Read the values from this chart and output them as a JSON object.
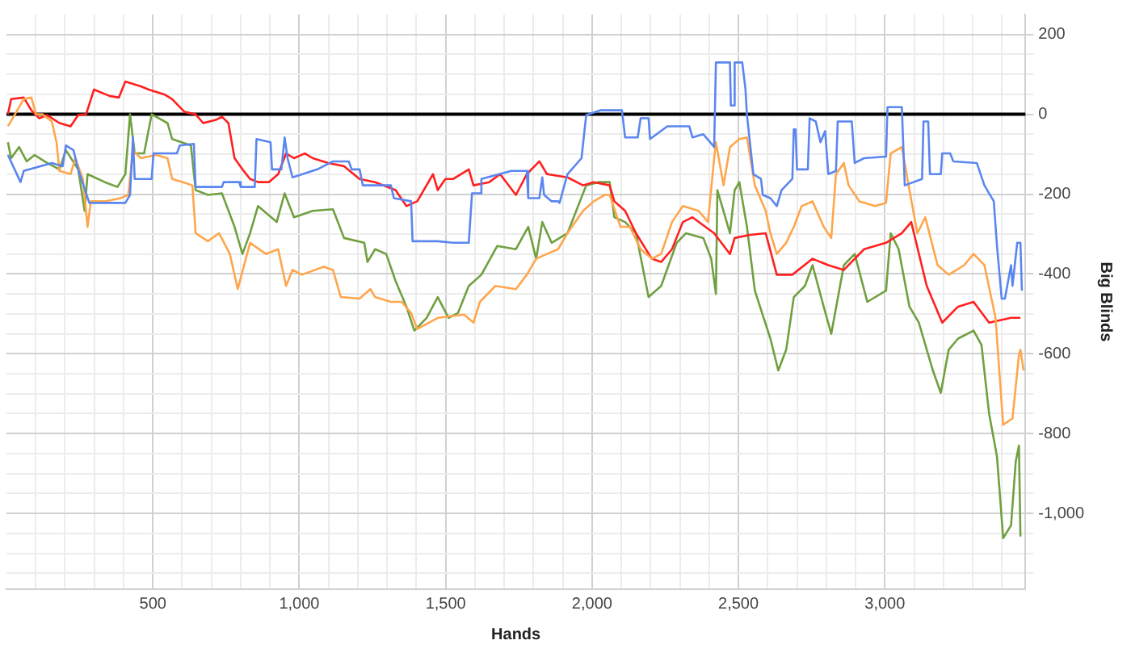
{
  "chart_data": {
    "type": "line",
    "xlabel": "Hands",
    "ylabel": "Big Blinds",
    "xlim": [
      0,
      3480
    ],
    "ylim": [
      -1190,
      250
    ],
    "xticks": [
      {
        "value": 100,
        "label": null
      },
      {
        "value": 200,
        "label": null
      },
      {
        "value": 300,
        "label": null
      },
      {
        "value": 400,
        "label": null
      },
      {
        "value": 500,
        "label": "500"
      },
      {
        "value": 600,
        "label": null
      },
      {
        "value": 700,
        "label": null
      },
      {
        "value": 800,
        "label": null
      },
      {
        "value": 900,
        "label": null
      },
      {
        "value": 1000,
        "label": "1,000"
      },
      {
        "value": 1100,
        "label": null
      },
      {
        "value": 1200,
        "label": null
      },
      {
        "value": 1300,
        "label": null
      },
      {
        "value": 1400,
        "label": null
      },
      {
        "value": 1500,
        "label": "1,500"
      },
      {
        "value": 1600,
        "label": null
      },
      {
        "value": 1700,
        "label": null
      },
      {
        "value": 1800,
        "label": null
      },
      {
        "value": 1900,
        "label": null
      },
      {
        "value": 2000,
        "label": "2,000"
      },
      {
        "value": 2100,
        "label": null
      },
      {
        "value": 2200,
        "label": null
      },
      {
        "value": 2300,
        "label": null
      },
      {
        "value": 2400,
        "label": null
      },
      {
        "value": 2500,
        "label": "2,500"
      },
      {
        "value": 2600,
        "label": null
      },
      {
        "value": 2700,
        "label": null
      },
      {
        "value": 2800,
        "label": null
      },
      {
        "value": 2900,
        "label": null
      },
      {
        "value": 3000,
        "label": "3,000"
      },
      {
        "value": 3100,
        "label": null
      },
      {
        "value": 3200,
        "label": null
      },
      {
        "value": 3300,
        "label": null
      },
      {
        "value": 3400,
        "label": null
      }
    ],
    "yticks": [
      {
        "value": -1150,
        "label": null
      },
      {
        "value": -1100,
        "label": null
      },
      {
        "value": -1050,
        "label": null
      },
      {
        "value": -1000,
        "label": "-1,000"
      },
      {
        "value": -950,
        "label": null
      },
      {
        "value": -900,
        "label": null
      },
      {
        "value": -850,
        "label": null
      },
      {
        "value": -800,
        "label": "-800"
      },
      {
        "value": -750,
        "label": null
      },
      {
        "value": -700,
        "label": null
      },
      {
        "value": -650,
        "label": null
      },
      {
        "value": -600,
        "label": "-600"
      },
      {
        "value": -550,
        "label": null
      },
      {
        "value": -500,
        "label": null
      },
      {
        "value": -450,
        "label": null
      },
      {
        "value": -400,
        "label": "-400"
      },
      {
        "value": -350,
        "label": null
      },
      {
        "value": -300,
        "label": null
      },
      {
        "value": -250,
        "label": null
      },
      {
        "value": -200,
        "label": "-200"
      },
      {
        "value": -150,
        "label": null
      },
      {
        "value": -100,
        "label": null
      },
      {
        "value": -50,
        "label": null
      },
      {
        "value": 0,
        "label": "0"
      },
      {
        "value": 50,
        "label": null
      },
      {
        "value": 100,
        "label": null
      },
      {
        "value": 150,
        "label": null
      },
      {
        "value": 200,
        "label": "200"
      }
    ],
    "grid": true,
    "legend": false,
    "marker": "none",
    "line_style": "solid",
    "ref_lines": [
      {
        "axis": "y",
        "value": 0,
        "color": "#000000"
      }
    ],
    "series": [
      {
        "color": "#5b86f0",
        "x": [
          5,
          48,
          59,
          155,
          192,
          203,
          229,
          245,
          283,
          406,
          422,
          432,
          438,
          496,
          502,
          582,
          592,
          640,
          646,
          736,
          742,
          795,
          800,
          848,
          854,
          902,
          907,
          939,
          950,
          960,
          977,
          1062,
          1115,
          1169,
          1179,
          1206,
          1217,
          1233,
          1313,
          1323,
          1382,
          1387,
          1473,
          1526,
          1579,
          1590,
          1617,
          1622,
          1724,
          1777,
          1782,
          1820,
          1830,
          1836,
          1862,
          1884,
          1889,
          1916,
          1964,
          1974,
          1980,
          2028,
          2060,
          2102,
          2113,
          2156,
          2166,
          2193,
          2198,
          2257,
          2332,
          2343,
          2380,
          2417,
          2423,
          2471,
          2474,
          2484,
          2487,
          2513,
          2524,
          2529,
          2551,
          2577,
          2583,
          2609,
          2631,
          2647,
          2684,
          2689,
          2695,
          2700,
          2737,
          2743,
          2764,
          2780,
          2796,
          2807,
          2833,
          2839,
          2887,
          2897,
          2929,
          3004,
          3009,
          3058,
          3068,
          3127,
          3132,
          3148,
          3154,
          3191,
          3196,
          3223,
          3234,
          3314,
          3340,
          3372,
          3383,
          3399,
          3410,
          3431,
          3436,
          3452,
          3463,
          3468
        ],
        "values": [
          -102,
          -170,
          -142,
          -122,
          -130,
          -78,
          -90,
          -138,
          -222,
          -222,
          -202,
          -58,
          -162,
          -162,
          -98,
          -98,
          -78,
          -74,
          -182,
          -182,
          -170,
          -170,
          -182,
          -182,
          -62,
          -70,
          -138,
          -138,
          -58,
          -110,
          -158,
          -138,
          -118,
          -118,
          -138,
          -138,
          -178,
          -178,
          -178,
          -210,
          -218,
          -318,
          -318,
          -322,
          -322,
          -198,
          -198,
          -162,
          -142,
          -142,
          -210,
          -210,
          -158,
          -202,
          -218,
          -218,
          -222,
          -150,
          -110,
          -42,
          -2,
          10,
          10,
          10,
          -58,
          -58,
          -10,
          -10,
          -62,
          -30,
          -30,
          -58,
          -50,
          -82,
          130,
          130,
          22,
          22,
          130,
          130,
          62,
          -2,
          -150,
          -162,
          -202,
          -210,
          -230,
          -190,
          -162,
          -38,
          -38,
          -138,
          -138,
          -10,
          -18,
          -70,
          -42,
          -150,
          -142,
          -18,
          -18,
          -122,
          -110,
          -106,
          18,
          18,
          -178,
          -162,
          -18,
          -18,
          -150,
          -150,
          -98,
          -98,
          -118,
          -122,
          -178,
          -218,
          -330,
          -462,
          -462,
          -378,
          -430,
          -322,
          -322,
          -442
        ]
      },
      {
        "color": "#ffa64d",
        "x": [
          5,
          21,
          59,
          85,
          101,
          123,
          155,
          171,
          181,
          219,
          235,
          261,
          277,
          288,
          336,
          390,
          416,
          432,
          459,
          512,
          550,
          566,
          603,
          635,
          646,
          688,
          726,
          763,
          790,
          832,
          886,
          928,
          955,
          977,
          1009,
          1083,
          1115,
          1142,
          1206,
          1243,
          1259,
          1313,
          1350,
          1382,
          1403,
          1473,
          1563,
          1595,
          1617,
          1670,
          1740,
          1777,
          1809,
          1846,
          1884,
          1916,
          1969,
          2006,
          2044,
          2060,
          2097,
          2129,
          2166,
          2204,
          2236,
          2273,
          2310,
          2364,
          2396,
          2417,
          2423,
          2449,
          2471,
          2503,
          2529,
          2556,
          2593,
          2609,
          2631,
          2663,
          2689,
          2716,
          2753,
          2791,
          2817,
          2833,
          2860,
          2876,
          2913,
          2967,
          3004,
          3020,
          3058,
          3084,
          3111,
          3138,
          3180,
          3218,
          3271,
          3303,
          3340,
          3378,
          3404,
          3436,
          3458,
          3463,
          3474
        ],
        "values": [
          -30,
          -10,
          38,
          42,
          0,
          0,
          -18,
          -70,
          -142,
          -150,
          -110,
          -162,
          -282,
          -218,
          -218,
          -210,
          -202,
          -90,
          -110,
          -102,
          -110,
          -162,
          -170,
          -178,
          -298,
          -318,
          -298,
          -350,
          -438,
          -322,
          -350,
          -338,
          -430,
          -390,
          -402,
          -382,
          -390,
          -458,
          -462,
          -438,
          -458,
          -470,
          -470,
          -498,
          -538,
          -510,
          -502,
          -522,
          -470,
          -430,
          -438,
          -402,
          -362,
          -350,
          -338,
          -298,
          -242,
          -218,
          -202,
          -202,
          -282,
          -282,
          -338,
          -362,
          -350,
          -270,
          -230,
          -242,
          -270,
          -110,
          -70,
          -178,
          -82,
          -62,
          -58,
          -178,
          -242,
          -298,
          -350,
          -322,
          -282,
          -230,
          -218,
          -282,
          -310,
          -150,
          -122,
          -178,
          -218,
          -230,
          -222,
          -98,
          -82,
          -190,
          -298,
          -258,
          -378,
          -402,
          -378,
          -350,
          -378,
          -510,
          -778,
          -762,
          -602,
          -590,
          -642
        ]
      },
      {
        "color": "#ff2020",
        "x": [
          5,
          16,
          59,
          85,
          112,
          139,
          181,
          219,
          245,
          272,
          299,
          352,
          384,
          406,
          459,
          486,
          539,
          566,
          608,
          646,
          672,
          715,
          736,
          758,
          779,
          806,
          832,
          859,
          896,
          928,
          955,
          982,
          1019,
          1046,
          1099,
          1153,
          1206,
          1259,
          1329,
          1366,
          1403,
          1457,
          1473,
          1499,
          1526,
          1579,
          1595,
          1649,
          1686,
          1740,
          1777,
          1820,
          1846,
          1916,
          1969,
          2006,
          2060,
          2076,
          2113,
          2150,
          2204,
          2236,
          2273,
          2310,
          2343,
          2417,
          2471,
          2487,
          2540,
          2593,
          2631,
          2684,
          2753,
          2807,
          2860,
          2929,
          3004,
          3058,
          3090,
          3143,
          3196,
          3250,
          3303,
          3356,
          3431,
          3463
        ],
        "values": [
          0,
          38,
          42,
          10,
          -10,
          -2,
          -22,
          -30,
          -2,
          0,
          62,
          46,
          42,
          82,
          70,
          62,
          50,
          38,
          6,
          0,
          -22,
          -14,
          -6,
          -22,
          -110,
          -138,
          -162,
          -170,
          -170,
          -150,
          -98,
          -110,
          -98,
          -110,
          -122,
          -130,
          -162,
          -170,
          -190,
          -230,
          -218,
          -150,
          -190,
          -162,
          -162,
          -138,
          -178,
          -170,
          -150,
          -202,
          -150,
          -118,
          -150,
          -158,
          -178,
          -170,
          -178,
          -218,
          -242,
          -298,
          -362,
          -370,
          -338,
          -270,
          -258,
          -298,
          -350,
          -310,
          -302,
          -298,
          -402,
          -402,
          -362,
          -378,
          -390,
          -338,
          -322,
          -298,
          -270,
          -430,
          -522,
          -482,
          -470,
          -522,
          -510,
          -510
        ]
      },
      {
        "color": "#70a040",
        "x": [
          5,
          16,
          43,
          69,
          96,
          139,
          181,
          203,
          245,
          267,
          277,
          336,
          379,
          406,
          422,
          438,
          470,
          496,
          550,
          566,
          630,
          646,
          688,
          736,
          779,
          806,
          832,
          859,
          923,
          950,
          982,
          1046,
          1115,
          1153,
          1222,
          1233,
          1259,
          1297,
          1329,
          1366,
          1393,
          1435,
          1473,
          1510,
          1542,
          1579,
          1622,
          1676,
          1740,
          1782,
          1809,
          1830,
          1862,
          1916,
          1980,
          2022,
          2060,
          2076,
          2113,
          2150,
          2193,
          2236,
          2289,
          2321,
          2380,
          2407,
          2423,
          2428,
          2471,
          2487,
          2503,
          2529,
          2556,
          2609,
          2636,
          2663,
          2689,
          2727,
          2753,
          2791,
          2817,
          2860,
          2897,
          2940,
          3004,
          3020,
          3047,
          3084,
          3116,
          3164,
          3191,
          3218,
          3250,
          3303,
          3330,
          3356,
          3383,
          3404,
          3431,
          3447,
          3458,
          3463
        ],
        "values": [
          -70,
          -110,
          -82,
          -118,
          -102,
          -122,
          -138,
          -90,
          -138,
          -242,
          -150,
          -170,
          -182,
          -150,
          0,
          -98,
          -98,
          0,
          -22,
          -62,
          -78,
          -190,
          -202,
          -198,
          -282,
          -350,
          -298,
          -230,
          -270,
          -198,
          -258,
          -242,
          -238,
          -310,
          -322,
          -370,
          -338,
          -350,
          -418,
          -482,
          -542,
          -510,
          -458,
          -510,
          -498,
          -430,
          -402,
          -330,
          -338,
          -282,
          -362,
          -270,
          -322,
          -298,
          -178,
          -170,
          -170,
          -258,
          -270,
          -298,
          -458,
          -430,
          -322,
          -298,
          -310,
          -362,
          -450,
          -190,
          -298,
          -190,
          -170,
          -282,
          -442,
          -562,
          -642,
          -590,
          -458,
          -430,
          -378,
          -482,
          -550,
          -378,
          -350,
          -470,
          -442,
          -298,
          -338,
          -482,
          -522,
          -642,
          -698,
          -590,
          -562,
          -542,
          -578,
          -750,
          -858,
          -1062,
          -1030,
          -870,
          -830,
          -1058
        ]
      }
    ]
  }
}
